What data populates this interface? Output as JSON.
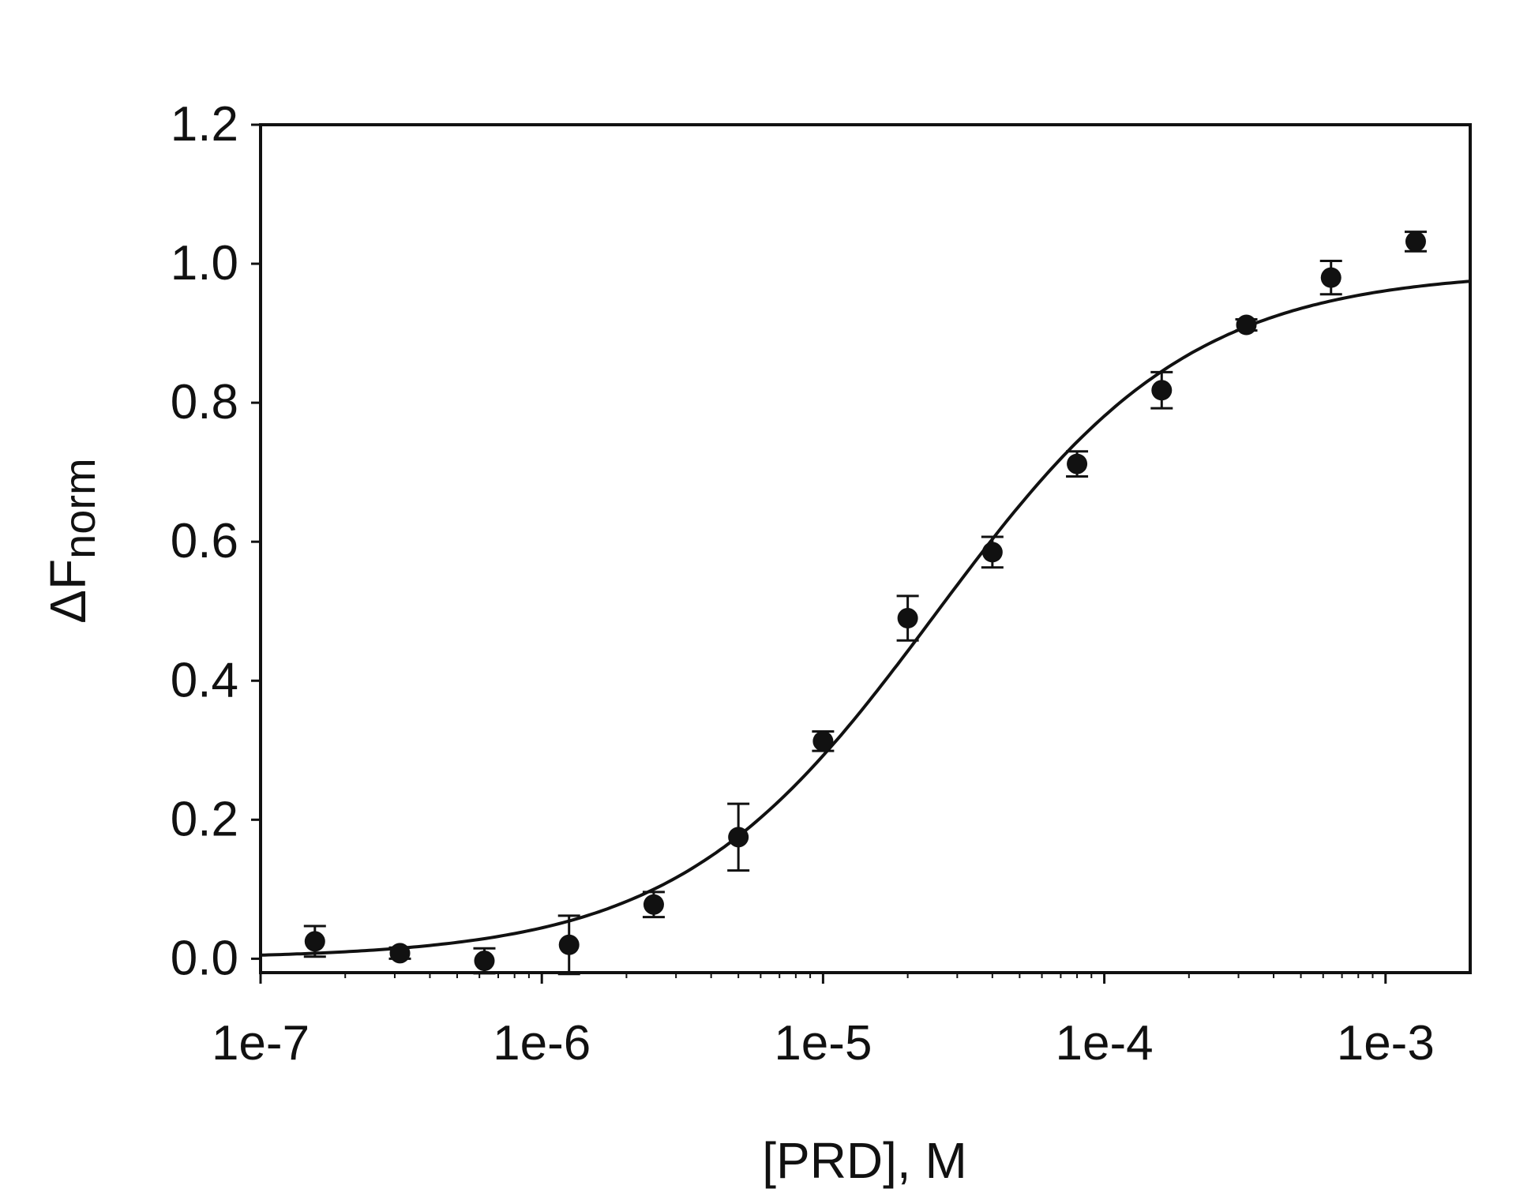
{
  "chart_data": {
    "type": "scatter",
    "title": "",
    "xlabel": "[PRD], M",
    "ylabel": {
      "main": "ΔF",
      "sub": "norm"
    },
    "xscale": "log",
    "xlim": [
      1e-07,
      0.002
    ],
    "ylim": [
      -0.02,
      1.2
    ],
    "xticks": [
      {
        "value": 1e-07,
        "label": "1e-7"
      },
      {
        "value": 1e-06,
        "label": "1e-6"
      },
      {
        "value": 1e-05,
        "label": "1e-5"
      },
      {
        "value": 0.0001,
        "label": "1e-4"
      },
      {
        "value": 0.001,
        "label": "1e-3"
      }
    ],
    "yticks": [
      {
        "value": 0.0,
        "label": "0.0"
      },
      {
        "value": 0.2,
        "label": "0.2"
      },
      {
        "value": 0.4,
        "label": "0.4"
      },
      {
        "value": 0.6,
        "label": "0.6"
      },
      {
        "value": 0.8,
        "label": "0.8"
      },
      {
        "value": 1.0,
        "label": "1.0"
      },
      {
        "value": 1.2,
        "label": "1.2"
      }
    ],
    "grid": false,
    "legend": "none",
    "series": [
      {
        "kind": "points-with-error",
        "color": "#111111",
        "points": [
          {
            "x": 1.56e-07,
            "y": 0.025,
            "err": 0.022
          },
          {
            "x": 3.13e-07,
            "y": 0.008,
            "err": 0.008
          },
          {
            "x": 6.25e-07,
            "y": -0.003,
            "err": 0.018
          },
          {
            "x": 1.25e-06,
            "y": 0.02,
            "err": 0.042
          },
          {
            "x": 2.5e-06,
            "y": 0.078,
            "err": 0.018
          },
          {
            "x": 5e-06,
            "y": 0.175,
            "err": 0.048
          },
          {
            "x": 1e-05,
            "y": 0.313,
            "err": 0.014
          },
          {
            "x": 2e-05,
            "y": 0.49,
            "err": 0.032
          },
          {
            "x": 4e-05,
            "y": 0.585,
            "err": 0.022
          },
          {
            "x": 8e-05,
            "y": 0.712,
            "err": 0.018
          },
          {
            "x": 0.00016,
            "y": 0.818,
            "err": 0.026
          },
          {
            "x": 0.00032,
            "y": 0.912,
            "err": 0.008
          },
          {
            "x": 0.00064,
            "y": 0.98,
            "err": 0.024
          },
          {
            "x": 0.00128,
            "y": 1.032,
            "err": 0.014
          }
        ]
      },
      {
        "kind": "fit-curve",
        "color": "#111111",
        "model": "hill",
        "params": {
          "bottom": 0.0,
          "top": 0.99,
          "ec50": 2.5e-05,
          "hill": 0.95
        }
      }
    ]
  }
}
